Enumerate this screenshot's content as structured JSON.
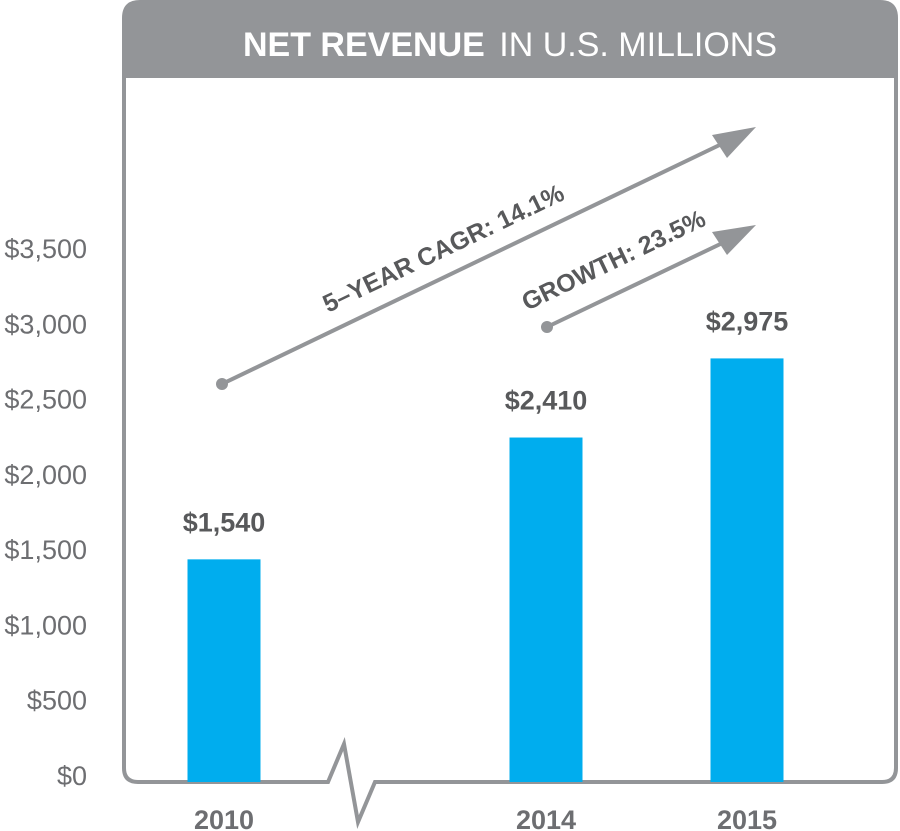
{
  "chart_data": {
    "type": "bar",
    "title": "NET REVENUE",
    "subtitle": "IN U.S. MILLIONS",
    "xlabel": "",
    "ylabel": "",
    "categories": [
      "2010",
      "2014",
      "2015"
    ],
    "values": [
      1540,
      2410,
      2975
    ],
    "data_labels": [
      "$1,540",
      "$2,410",
      "$2,975"
    ],
    "ylim": [
      0,
      3500
    ],
    "yticks": [
      0,
      500,
      1000,
      1500,
      2000,
      2500,
      3000,
      3500
    ],
    "ytick_labels": [
      "$0",
      "$500",
      "$1,000",
      "$1,500",
      "$2,000",
      "$2,500",
      "$3,000",
      "$3,500"
    ],
    "axis_break": "between 2010 and 2014",
    "grid": false,
    "annotations": [
      {
        "text": "5–YEAR CAGR: 14.1%",
        "from": "2010",
        "to": "2015",
        "kind": "arrow"
      },
      {
        "text": "GROWTH: 23.5%",
        "from": "2014",
        "to": "2015",
        "kind": "arrow"
      }
    ],
    "colors": {
      "bar": "#00adee",
      "frame": "#939598",
      "header": "#939598",
      "text": "#6d6e71",
      "label": "#58595b"
    }
  }
}
